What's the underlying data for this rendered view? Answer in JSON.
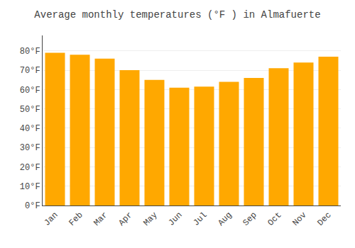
{
  "chart_data": {
    "type": "bar",
    "title": "Average monthly temperatures (°F ) in Almafuerte",
    "categories": [
      "Jan",
      "Feb",
      "Mar",
      "Apr",
      "May",
      "Jun",
      "Jul",
      "Aug",
      "Sep",
      "Oct",
      "Nov",
      "Dec"
    ],
    "values": [
      79,
      78,
      76,
      70,
      65,
      61,
      61.5,
      64,
      66,
      71,
      74,
      77
    ],
    "color": "#FFA800",
    "ylim": [
      0,
      88
    ],
    "yticks": [
      {
        "value": 0,
        "label": "0°F"
      },
      {
        "value": 10,
        "label": "10°F"
      },
      {
        "value": 20,
        "label": "20°F"
      },
      {
        "value": 30,
        "label": "30°F"
      },
      {
        "value": 40,
        "label": "40°F"
      },
      {
        "value": 50,
        "label": "50°F"
      },
      {
        "value": 60,
        "label": "60°F"
      },
      {
        "value": 70,
        "label": "70°F"
      },
      {
        "value": 80,
        "label": "80°F"
      }
    ],
    "grid": true
  }
}
